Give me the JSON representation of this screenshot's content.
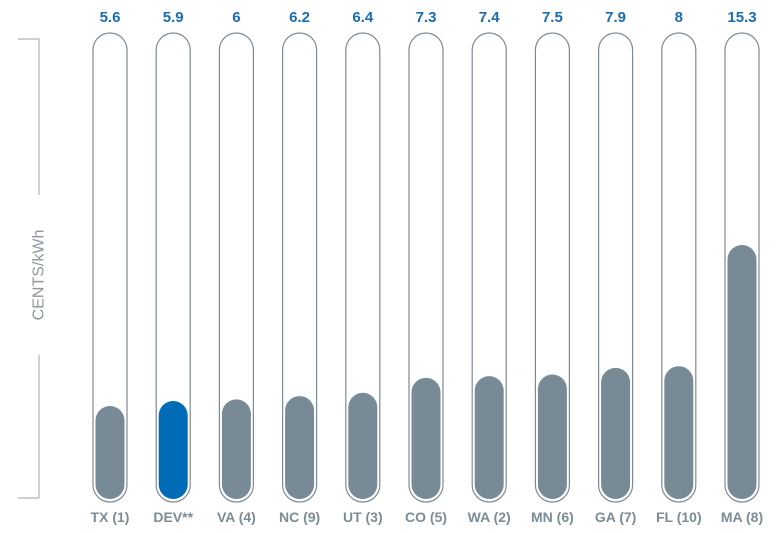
{
  "chart_data": {
    "type": "bar",
    "ylabel": "CENTS/kWh",
    "categories": [
      "TX (1)",
      "DEV**",
      "VA (4)",
      "NC (9)",
      "UT (3)",
      "CO (5)",
      "WA (2)",
      "MN (6)",
      "GA (7)",
      "FL (10)",
      "MA (8)"
    ],
    "values": [
      5.6,
      5.9,
      6,
      6.2,
      6.4,
      7.3,
      7.4,
      7.5,
      7.9,
      8,
      15.3
    ],
    "value_labels": [
      "5.6",
      "5.9",
      "6",
      "6.2",
      "6.4",
      "7.3",
      "7.4",
      "7.5",
      "7.9",
      "8",
      "15.3"
    ],
    "ylim": [
      0,
      21
    ],
    "highlight_index": 1,
    "grid": false,
    "legend": "none",
    "colors": {
      "bar": "#778A96",
      "highlight": "#006BB6",
      "value_label": "#1A6DB0",
      "category_label": "#7B8C97",
      "track_outline": "#7E8A93",
      "axis": "#9AA3A9",
      "ylabel": "#8E989F"
    }
  }
}
